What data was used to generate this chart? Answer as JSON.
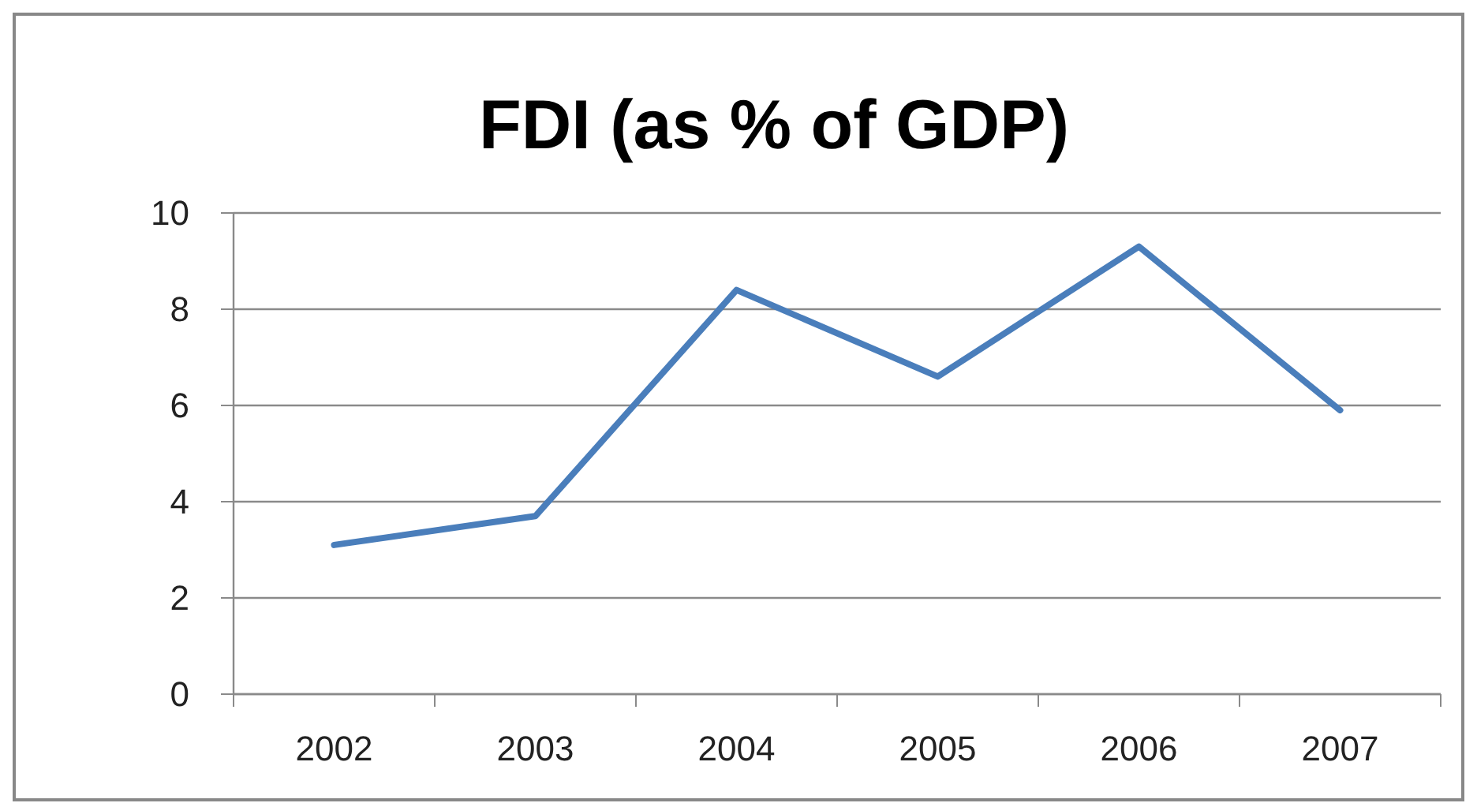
{
  "chart_data": {
    "type": "line",
    "title": "FDI (as % of GDP)",
    "categories": [
      "2002",
      "2003",
      "2004",
      "2005",
      "2006",
      "2007"
    ],
    "series": [
      {
        "color": "#4a7ebb",
        "values": [
          3.1,
          3.7,
          8.4,
          6.6,
          9.3,
          5.9
        ]
      }
    ],
    "ylim": [
      0,
      10
    ],
    "yticks": [
      0,
      2,
      4,
      6,
      8,
      10
    ],
    "grid": "y",
    "marker": "none",
    "line_style": "solid"
  }
}
